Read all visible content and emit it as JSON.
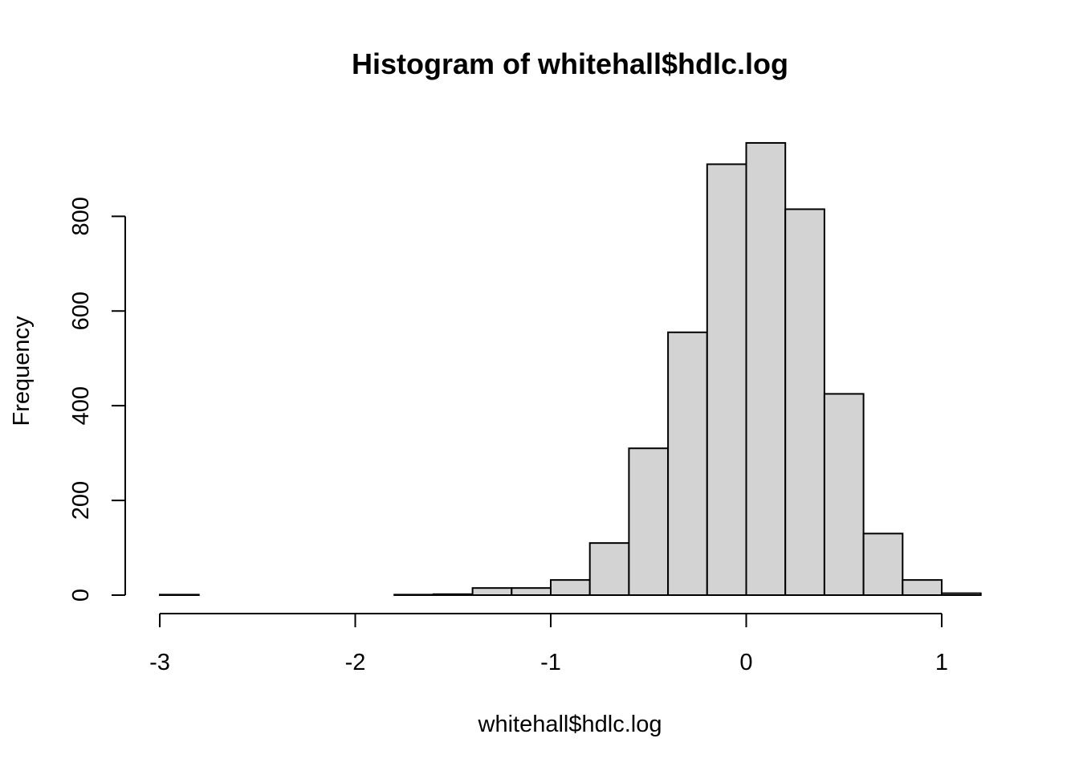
{
  "chart_data": {
    "type": "bar",
    "title": "Histogram of whitehall$hdlc.log",
    "xlabel": "whitehall$hdlc.log",
    "ylabel": "Frequency",
    "xlim": [
      -3,
      1.2
    ],
    "ylim": [
      0,
      960
    ],
    "x_ticks": [
      -3,
      -2,
      -1,
      0,
      1
    ],
    "y_ticks": [
      0,
      200,
      400,
      600,
      800
    ],
    "x_tick_labels": [
      "-3",
      "-2",
      "-1",
      "0",
      "1"
    ],
    "y_tick_labels": [
      "0",
      "200",
      "400",
      "600",
      "800"
    ],
    "grid": false,
    "colors": {
      "bar_fill": "#d3d3d3",
      "bar_stroke": "#000000"
    },
    "bins": [
      {
        "x0": -3.0,
        "x1": -2.8,
        "count": 1
      },
      {
        "x0": -2.8,
        "x1": -2.6,
        "count": 0
      },
      {
        "x0": -2.6,
        "x1": -2.4,
        "count": 0
      },
      {
        "x0": -2.4,
        "x1": -2.2,
        "count": 0
      },
      {
        "x0": -2.2,
        "x1": -2.0,
        "count": 0
      },
      {
        "x0": -2.0,
        "x1": -1.8,
        "count": 0
      },
      {
        "x0": -1.8,
        "x1": -1.6,
        "count": 1
      },
      {
        "x0": -1.6,
        "x1": -1.4,
        "count": 2
      },
      {
        "x0": -1.4,
        "x1": -1.2,
        "count": 15
      },
      {
        "x0": -1.2,
        "x1": -1.0,
        "count": 15
      },
      {
        "x0": -1.0,
        "x1": -0.8,
        "count": 32
      },
      {
        "x0": -0.8,
        "x1": -0.6,
        "count": 110
      },
      {
        "x0": -0.6,
        "x1": -0.4,
        "count": 310
      },
      {
        "x0": -0.4,
        "x1": -0.2,
        "count": 555
      },
      {
        "x0": -0.2,
        "x1": 0.0,
        "count": 910
      },
      {
        "x0": 0.0,
        "x1": 0.2,
        "count": 955
      },
      {
        "x0": 0.2,
        "x1": 0.4,
        "count": 815
      },
      {
        "x0": 0.4,
        "x1": 0.6,
        "count": 425
      },
      {
        "x0": 0.6,
        "x1": 0.8,
        "count": 130
      },
      {
        "x0": 0.8,
        "x1": 1.0,
        "count": 32
      },
      {
        "x0": 1.0,
        "x1": 1.2,
        "count": 4
      }
    ]
  }
}
